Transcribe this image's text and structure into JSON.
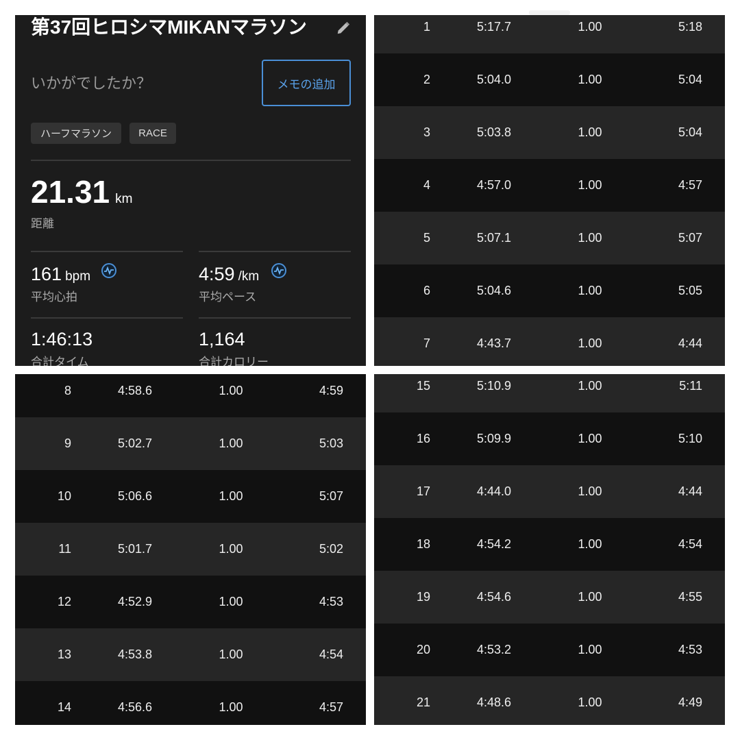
{
  "summary": {
    "title": "第37回ヒロシマMIKANマラソン",
    "edit_icon": "pencil-icon",
    "prompt": "いかがでしたか？",
    "add_memo_label": "メモの追加",
    "tags": [
      "ハーフマラソン",
      "RACE"
    ],
    "distance": {
      "value": "21.31",
      "unit": "km",
      "label": "距離"
    },
    "avg_hr": {
      "value": "161",
      "unit": "bpm",
      "label": "平均心拍",
      "icon": "heart-rate-icon"
    },
    "avg_pace": {
      "value": "4:59",
      "unit": "/km",
      "label": "平均ペース",
      "icon": "heart-rate-icon"
    },
    "total_time": {
      "value": "1:46:13",
      "label": "合計タイム"
    },
    "total_calories": {
      "value": "1,164",
      "label": "合計カロリー"
    },
    "accent_color": "#4a8fd6"
  },
  "laps": [
    {
      "lap": "1",
      "time": "5:17.7",
      "dist": "1.00",
      "pace": "5:18"
    },
    {
      "lap": "2",
      "time": "5:04.0",
      "dist": "1.00",
      "pace": "5:04"
    },
    {
      "lap": "3",
      "time": "5:03.8",
      "dist": "1.00",
      "pace": "5:04"
    },
    {
      "lap": "4",
      "time": "4:57.0",
      "dist": "1.00",
      "pace": "4:57"
    },
    {
      "lap": "5",
      "time": "5:07.1",
      "dist": "1.00",
      "pace": "5:07"
    },
    {
      "lap": "6",
      "time": "5:04.6",
      "dist": "1.00",
      "pace": "5:05"
    },
    {
      "lap": "7",
      "time": "4:43.7",
      "dist": "1.00",
      "pace": "4:44"
    },
    {
      "lap": "8",
      "time": "4:58.6",
      "dist": "1.00",
      "pace": "4:59"
    },
    {
      "lap": "9",
      "time": "5:02.7",
      "dist": "1.00",
      "pace": "5:03"
    },
    {
      "lap": "10",
      "time": "5:06.6",
      "dist": "1.00",
      "pace": "5:07"
    },
    {
      "lap": "11",
      "time": "5:01.7",
      "dist": "1.00",
      "pace": "5:02"
    },
    {
      "lap": "12",
      "time": "4:52.9",
      "dist": "1.00",
      "pace": "4:53"
    },
    {
      "lap": "13",
      "time": "4:53.8",
      "dist": "1.00",
      "pace": "4:54"
    },
    {
      "lap": "14",
      "time": "4:56.6",
      "dist": "1.00",
      "pace": "4:57"
    },
    {
      "lap": "15",
      "time": "5:10.9",
      "dist": "1.00",
      "pace": "5:11"
    },
    {
      "lap": "16",
      "time": "5:09.9",
      "dist": "1.00",
      "pace": "5:10"
    },
    {
      "lap": "17",
      "time": "4:44.0",
      "dist": "1.00",
      "pace": "4:44"
    },
    {
      "lap": "18",
      "time": "4:54.2",
      "dist": "1.00",
      "pace": "4:54"
    },
    {
      "lap": "19",
      "time": "4:54.6",
      "dist": "1.00",
      "pace": "4:55"
    },
    {
      "lap": "20",
      "time": "4:53.2",
      "dist": "1.00",
      "pace": "4:53"
    },
    {
      "lap": "21",
      "time": "4:48.6",
      "dist": "1.00",
      "pace": "4:49"
    }
  ]
}
